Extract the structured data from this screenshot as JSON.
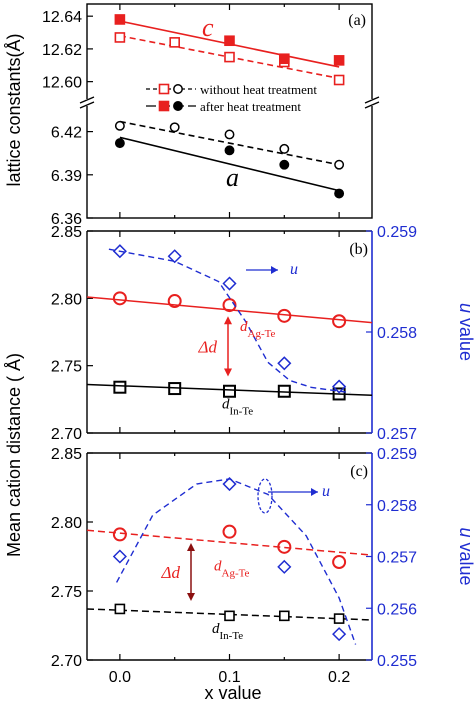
{
  "figure": {
    "x_axis_label": "x value",
    "x_ticks": [
      "0.0",
      "0.1",
      "0.2"
    ],
    "y_shared_label_bc": "Mean cation distance ( Å)"
  },
  "colors": {
    "black": "#000000",
    "red": "#e8201f",
    "blue": "#1f2dd1"
  },
  "chart_data": [
    {
      "type": "scatter",
      "panel_label": "(a)",
      "ylabel": "lattice constants(Å)",
      "y_break": true,
      "y_upper_range": [
        12.59,
        12.645
      ],
      "y_lower_range": [
        6.36,
        6.435
      ],
      "y_upper_ticks": [
        "12.64",
        "12.62",
        "12.60"
      ],
      "y_lower_ticks": [
        "6.42",
        "6.39",
        "6.36"
      ],
      "xlim": [
        -0.03,
        0.23
      ],
      "annotations": {
        "c": "c",
        "a": "a"
      },
      "legend": [
        {
          "name": "without heat treatment",
          "marker": "open",
          "line": "dashed"
        },
        {
          "name": "after heat treatment",
          "marker": "filled",
          "line": "solid"
        }
      ],
      "series": [
        {
          "name": "c without heat treatment",
          "x": [
            0.0,
            0.05,
            0.1,
            0.15,
            0.2
          ],
          "y": [
            12.627,
            12.624,
            12.615,
            12.612,
            12.601
          ],
          "fit": [
            [
              0.0,
              12.628
            ],
            [
              0.2,
              12.602
            ]
          ]
        },
        {
          "name": "c after heat treatment",
          "x": [
            0.0,
            0.1,
            0.15,
            0.2
          ],
          "y": [
            12.638,
            12.625,
            12.614,
            12.613
          ],
          "fit": [
            [
              0.0,
              12.637
            ],
            [
              0.2,
              12.609
            ]
          ]
        },
        {
          "name": "a without heat treatment",
          "x": [
            0.0,
            0.05,
            0.1,
            0.15,
            0.2
          ],
          "y": [
            6.424,
            6.423,
            6.418,
            6.408,
            6.397
          ],
          "fit": [
            [
              0.0,
              6.427
            ],
            [
              0.2,
              6.397
            ]
          ]
        },
        {
          "name": "a after heat treatment",
          "x": [
            0.0,
            0.1,
            0.15,
            0.2
          ],
          "y": [
            6.412,
            6.407,
            6.397,
            6.377
          ],
          "fit": [
            [
              0.0,
              6.416
            ],
            [
              0.2,
              6.379
            ]
          ]
        }
      ]
    },
    {
      "type": "scatter",
      "panel_label": "(b)",
      "ylim": [
        2.7,
        2.85
      ],
      "y2lim": [
        0.257,
        0.259
      ],
      "y_ticks": [
        "2.85",
        "2.80",
        "2.75",
        "2.70"
      ],
      "y2_ticks": [
        "0.259",
        "0.258",
        "0.257"
      ],
      "y2label": "u value",
      "annotations": {
        "u": "u",
        "delta": "Δd",
        "agte": "d",
        "agte_sub": "Ag-Te",
        "inte": "d",
        "inte_sub": "In-Te"
      },
      "series": [
        {
          "name": "dAg-Te",
          "axis": "left",
          "x": [
            0.0,
            0.05,
            0.1,
            0.15,
            0.2
          ],
          "y": [
            2.8,
            2.798,
            2.795,
            2.787,
            2.783
          ],
          "fit": [
            [
              -0.03,
              2.801
            ],
            [
              0.23,
              2.782
            ]
          ]
        },
        {
          "name": "dIn-Te",
          "axis": "left",
          "x": [
            0.0,
            0.05,
            0.1,
            0.15,
            0.2
          ],
          "y": [
            2.734,
            2.733,
            2.731,
            2.731,
            2.729
          ],
          "fit": [
            [
              -0.03,
              2.736
            ],
            [
              0.23,
              2.728
            ]
          ]
        },
        {
          "name": "u",
          "axis": "right",
          "x": [
            0.0,
            0.05,
            0.1,
            0.15,
            0.2
          ],
          "y": [
            0.2588,
            0.25875,
            0.25848,
            0.25769,
            0.25746
          ]
        }
      ]
    },
    {
      "type": "scatter",
      "panel_label": "(c)",
      "ylim": [
        2.7,
        2.85
      ],
      "y2lim": [
        0.255,
        0.259
      ],
      "y_ticks": [
        "2.85",
        "2.80",
        "2.75",
        "2.70"
      ],
      "y2_ticks": [
        "0.259",
        "0.258",
        "0.257",
        "0.256",
        "0.255"
      ],
      "y2label": "u value",
      "annotations": {
        "u": "u",
        "delta": "Δd",
        "agte": "d",
        "agte_sub": "Ag-Te",
        "inte": "d",
        "inte_sub": "In-Te"
      },
      "series": [
        {
          "name": "dAg-Te",
          "axis": "left",
          "x": [
            0.0,
            0.1,
            0.15,
            0.2
          ],
          "y": [
            2.791,
            2.793,
            2.782,
            2.771
          ],
          "fit": [
            [
              -0.03,
              2.794
            ],
            [
              0.23,
              2.776
            ]
          ]
        },
        {
          "name": "dIn-Te",
          "axis": "left",
          "x": [
            0.0,
            0.1,
            0.15,
            0.2
          ],
          "y": [
            2.737,
            2.732,
            2.732,
            2.73
          ],
          "fit": [
            [
              -0.03,
              2.737
            ],
            [
              0.23,
              2.729
            ]
          ]
        },
        {
          "name": "u",
          "axis": "right",
          "x": [
            0.0,
            0.1,
            0.15,
            0.2
          ],
          "y": [
            0.257,
            0.2584,
            0.2568,
            0.2555
          ]
        }
      ]
    }
  ]
}
